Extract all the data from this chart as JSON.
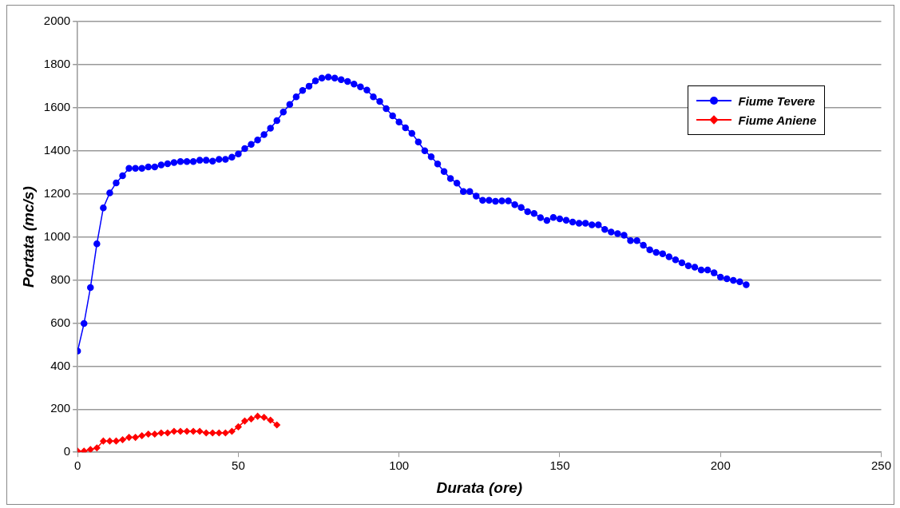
{
  "chart_data": {
    "type": "line",
    "xlabel": "Durata (ore)",
    "ylabel": "Portata (mc/s)",
    "xlim": [
      0,
      250
    ],
    "xticks": [
      0,
      50,
      100,
      150,
      200,
      250
    ],
    "ylim": [
      0,
      2000
    ],
    "yticks": [
      0,
      200,
      400,
      600,
      800,
      1000,
      1200,
      1400,
      1600,
      1800,
      2000
    ],
    "grid": "y",
    "legend": "top right",
    "series": [
      {
        "name": "Fiume Tevere",
        "color": "#0000ff",
        "marker": "circle",
        "x": [
          0,
          2,
          4,
          6,
          8,
          10,
          12,
          14,
          16,
          18,
          20,
          22,
          24,
          26,
          28,
          30,
          32,
          34,
          36,
          38,
          40,
          42,
          44,
          46,
          48,
          50,
          52,
          54,
          56,
          58,
          60,
          62,
          64,
          66,
          68,
          70,
          72,
          74,
          76,
          78,
          80,
          82,
          84,
          86,
          88,
          90,
          92,
          94,
          96,
          98,
          100,
          102,
          104,
          106,
          108,
          110,
          112,
          114,
          116,
          118,
          120,
          122,
          124,
          126,
          128,
          130,
          132,
          134,
          136,
          138,
          140,
          142,
          144,
          146,
          148,
          150,
          152,
          154,
          156,
          158,
          160,
          162,
          164,
          166,
          168,
          170,
          172,
          174,
          176,
          178,
          180,
          182,
          184,
          186,
          188,
          190,
          192,
          194,
          196,
          198,
          200,
          202,
          204,
          206,
          208
        ],
        "values": [
          470,
          598,
          765,
          968,
          1135,
          1204,
          1251,
          1284,
          1318,
          1318,
          1318,
          1325,
          1325,
          1334,
          1340,
          1345,
          1350,
          1350,
          1350,
          1356,
          1356,
          1352,
          1360,
          1360,
          1370,
          1385,
          1410,
          1430,
          1450,
          1475,
          1505,
          1540,
          1580,
          1615,
          1650,
          1680,
          1700,
          1725,
          1738,
          1742,
          1738,
          1730,
          1722,
          1710,
          1697,
          1682,
          1650,
          1629,
          1596,
          1562,
          1534,
          1507,
          1481,
          1441,
          1400,
          1372,
          1339,
          1304,
          1271,
          1250,
          1211,
          1211,
          1190,
          1170,
          1170,
          1165,
          1167,
          1167,
          1150,
          1137,
          1117,
          1109,
          1089,
          1076,
          1090,
          1084,
          1077,
          1069,
          1063,
          1063,
          1056,
          1056,
          1035,
          1023,
          1015,
          1008,
          983,
          983,
          961,
          940,
          928,
          922,
          908,
          894,
          880,
          866,
          859,
          846,
          846,
          833,
          813,
          806,
          798,
          792,
          778
        ]
      },
      {
        "name": "Fiume Aniene",
        "color": "#ff0000",
        "marker": "diamond",
        "x": [
          0,
          2,
          4,
          6,
          8,
          10,
          12,
          14,
          16,
          18,
          20,
          22,
          24,
          26,
          28,
          30,
          32,
          34,
          36,
          38,
          40,
          42,
          44,
          46,
          48,
          50,
          52,
          54,
          56,
          58,
          60,
          62
        ],
        "values": [
          5,
          5,
          13,
          20,
          52,
          52,
          52,
          58,
          69,
          69,
          77,
          84,
          84,
          90,
          90,
          97,
          97,
          97,
          97,
          97,
          90,
          90,
          90,
          90,
          97,
          118,
          145,
          155,
          167,
          162,
          149,
          127
        ]
      }
    ]
  }
}
